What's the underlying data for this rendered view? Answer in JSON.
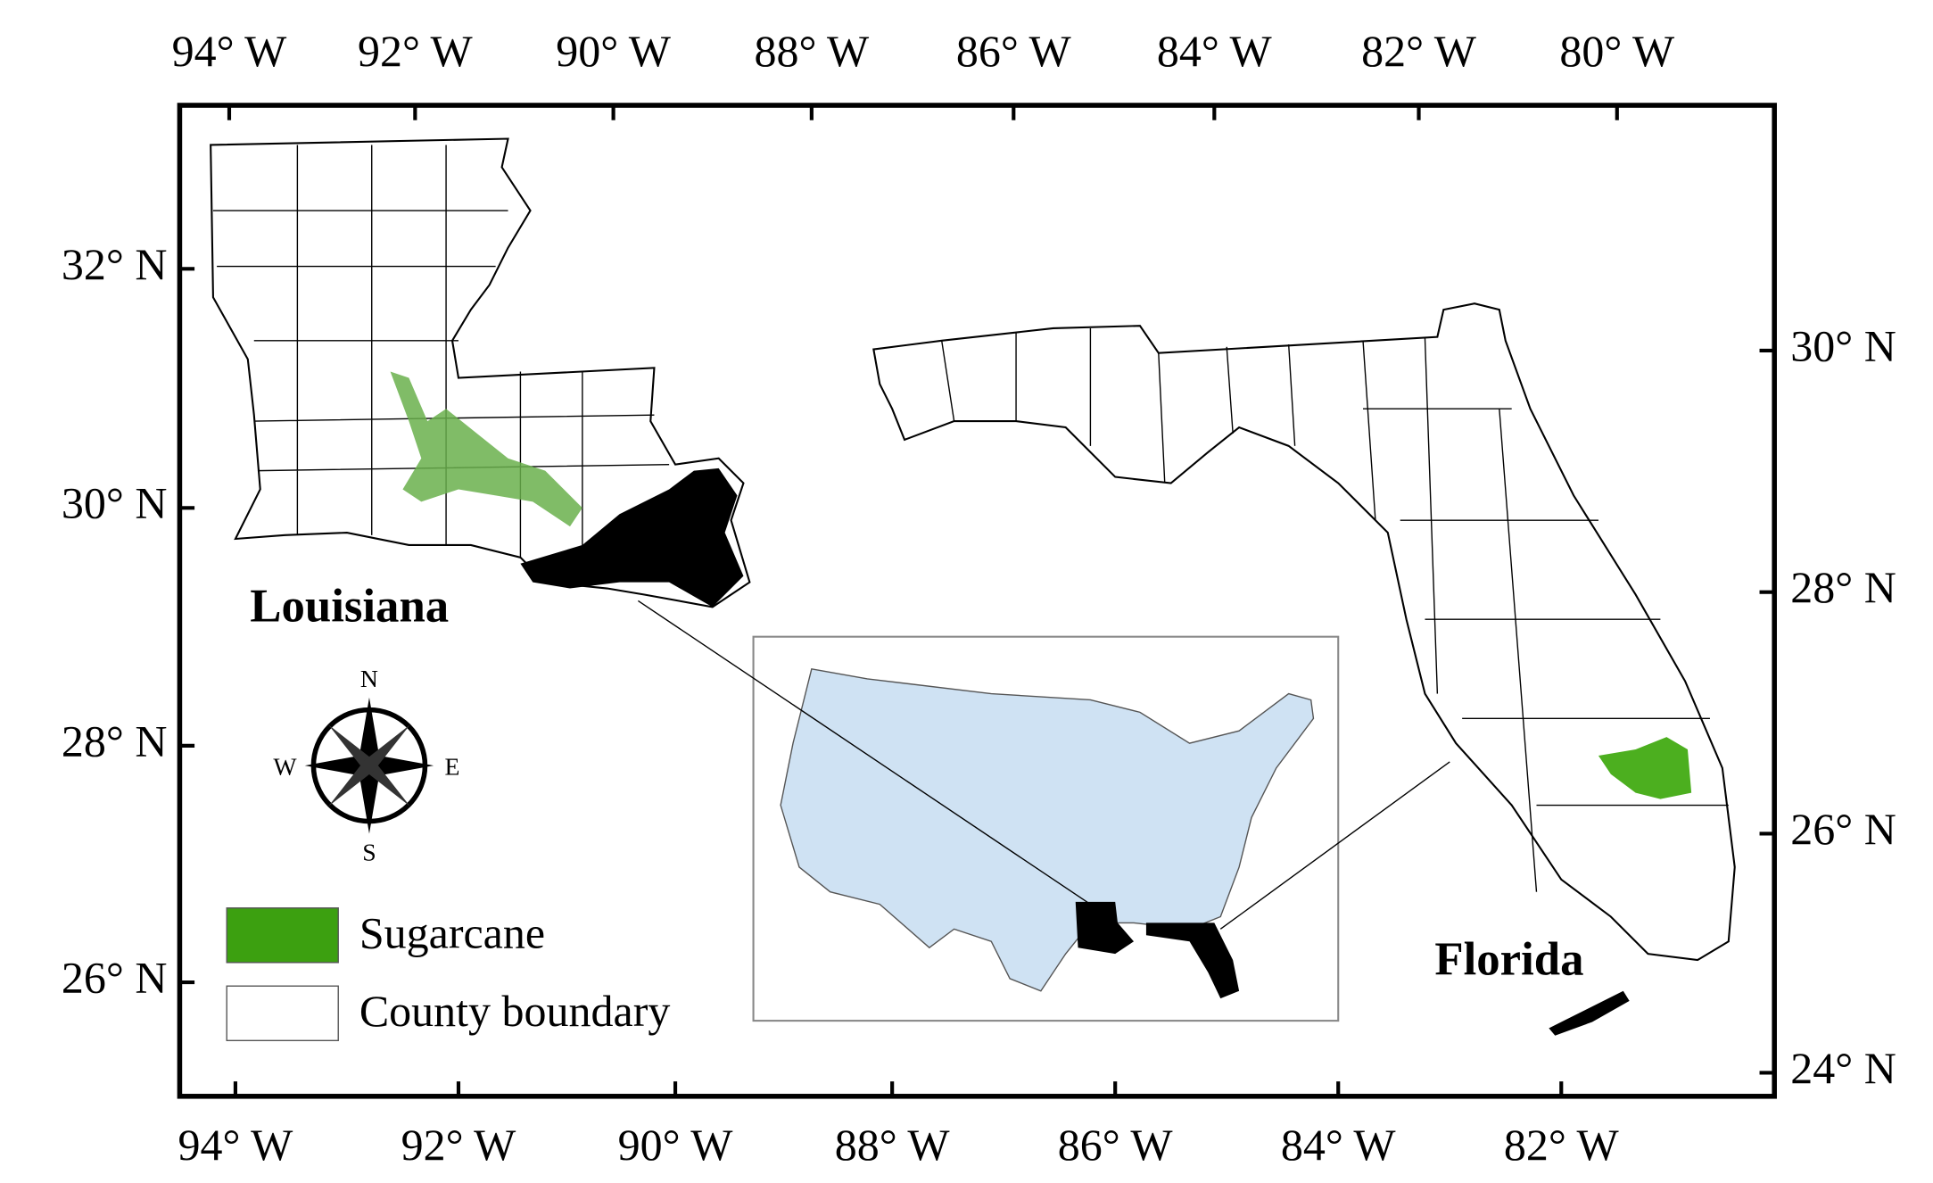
{
  "map": {
    "top_labels": [
      "94° W",
      "92° W",
      "90° W",
      "88° W",
      "86° W",
      "84° W",
      "82° W",
      "80° W"
    ],
    "bottom_labels": [
      "94° W",
      "92° W",
      "90° W",
      "88° W",
      "86° W",
      "84° W",
      "82° W"
    ],
    "left_labels": [
      "32° N",
      "30° N",
      "28° N",
      "26° N"
    ],
    "right_labels": [
      "30° N",
      "28° N",
      "26° N",
      "24° N"
    ],
    "state_labels": [
      "Louisiana",
      "Florida"
    ],
    "compass": [
      "N",
      "E",
      "S",
      "W"
    ],
    "legend": [
      "Sugarcane",
      "County boundary"
    ]
  }
}
